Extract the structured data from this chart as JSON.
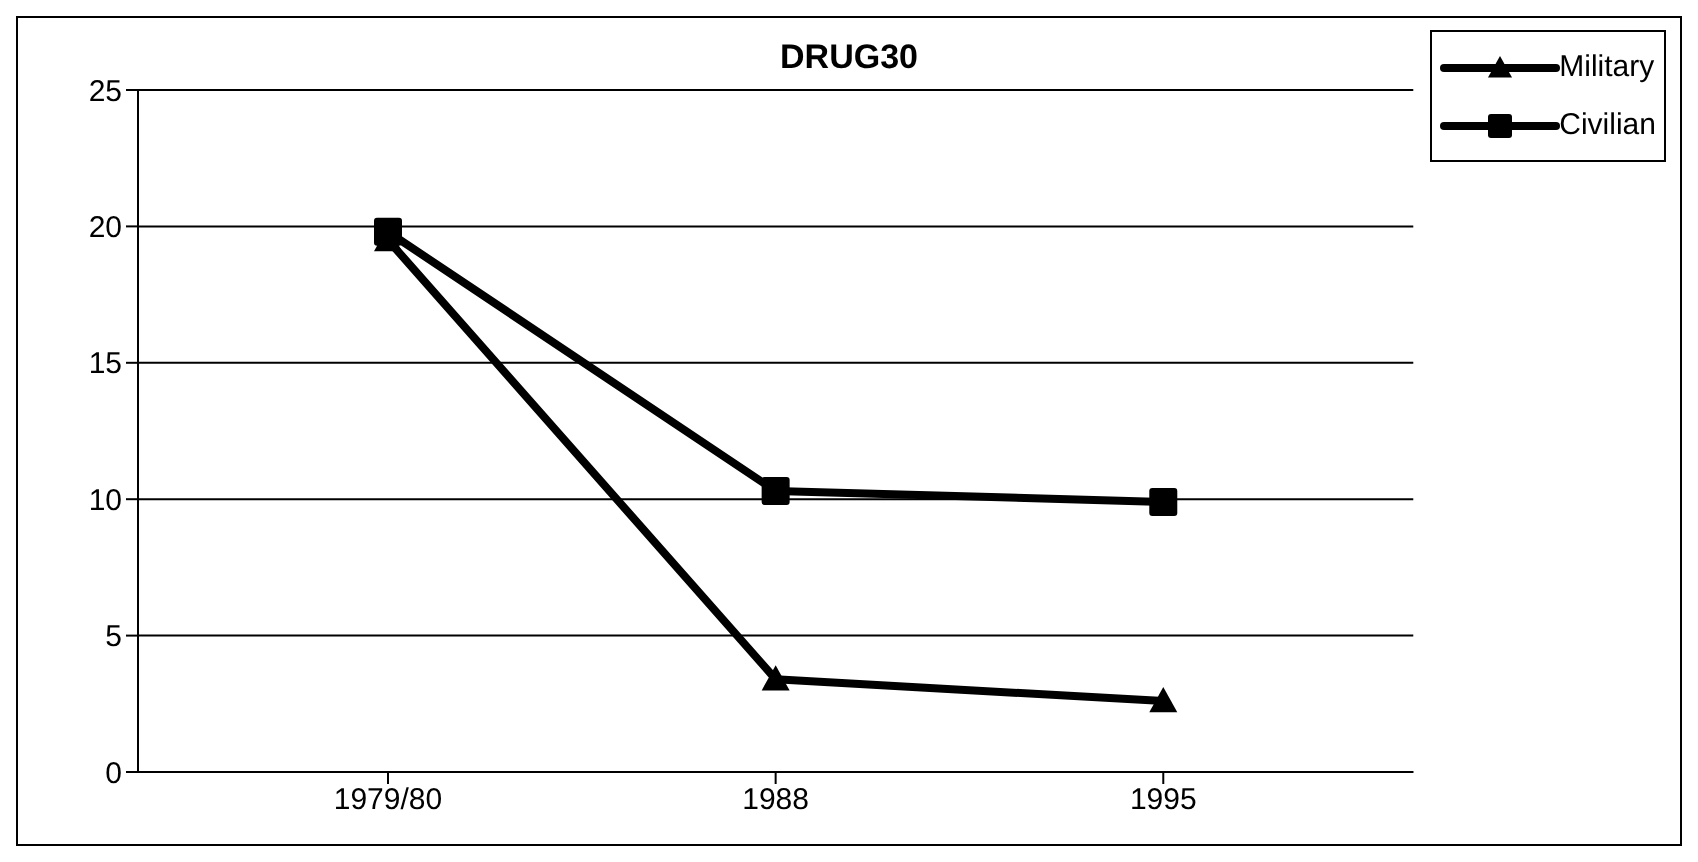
{
  "chart_data": {
    "type": "line",
    "title": "DRUG30",
    "categories": [
      "1979/80",
      "1988",
      "1995"
    ],
    "series": [
      {
        "name": "Military",
        "color": "#000000",
        "marker": "triangle",
        "values": [
          19.5,
          3.4,
          2.6
        ]
      },
      {
        "name": "Civilian",
        "color": "#000000",
        "marker": "square",
        "values": [
          19.8,
          10.3,
          9.9
        ]
      }
    ],
    "ylim": [
      0,
      25
    ],
    "yticks": [
      0,
      5,
      10,
      15,
      20,
      25
    ],
    "grid": "y",
    "legend": "top right"
  }
}
